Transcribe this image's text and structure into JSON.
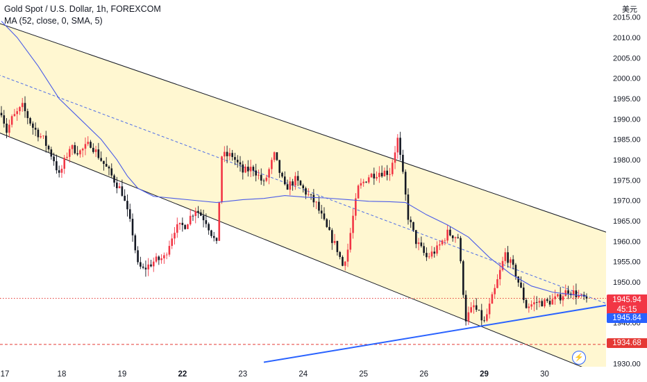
{
  "header": {
    "title": "Gold Spot / U.S. Dollar, 1h, FOREXCOM",
    "indicator": "MA (52, close, 0, SMA, 5)",
    "currency": "美元"
  },
  "price_tags": {
    "last_price": "1945.94",
    "countdown": "45:15",
    "trendline_price": "1945.84",
    "level_price": "1934.68"
  },
  "colors": {
    "up": "#f23645",
    "down": "#131722",
    "ma": "#4a5be8",
    "channel_fill": "#fff7d1",
    "trendline": "#2962ff",
    "level": "#e53935"
  },
  "flash_icon": "lightning-icon",
  "chart_data": {
    "type": "candlestick",
    "symbol": "Gold Spot / U.S. Dollar",
    "interval": "1h",
    "y_axis": {
      "ticks": [
        1930,
        1935,
        1940,
        1945,
        1950,
        1955,
        1960,
        1965,
        1970,
        1975,
        1980,
        1985,
        1990,
        1995,
        2000,
        2005,
        2010,
        2015
      ],
      "tick_labels": [
        "1930.00",
        "1935.00",
        "1940.00",
        "1945.00",
        "1950.00",
        "1955.00",
        "1960.00",
        "1965.00",
        "1970.00",
        "1975.00",
        "1980.00",
        "1985.00",
        "1990.00",
        "1995.00",
        "2000.00",
        "2005.00",
        "2010.00",
        "2015.00"
      ],
      "range": [
        1929.2,
        2019.2
      ],
      "side": "right"
    },
    "x_axis": {
      "labels": [
        "17",
        "18",
        "19",
        "22",
        "23",
        "24",
        "25",
        "26",
        "29",
        "30"
      ],
      "bold_labels": [
        "22",
        "29"
      ]
    },
    "anchors_close": [
      [
        0,
        1992
      ],
      [
        2,
        1987
      ],
      [
        4,
        1990
      ],
      [
        8,
        1993
      ],
      [
        12,
        1988
      ],
      [
        16,
        1985
      ],
      [
        20,
        1980
      ],
      [
        22,
        1976
      ],
      [
        26,
        1983
      ],
      [
        30,
        1982
      ],
      [
        34,
        1984
      ],
      [
        38,
        1980
      ],
      [
        42,
        1976
      ],
      [
        46,
        1972
      ],
      [
        50,
        1962
      ],
      [
        52,
        1954
      ],
      [
        54,
        1953
      ],
      [
        58,
        1955
      ],
      [
        62,
        1956
      ],
      [
        66,
        1963
      ],
      [
        70,
        1964
      ],
      [
        74,
        1968
      ],
      [
        78,
        1965
      ],
      [
        82,
        1959
      ],
      [
        84,
        1981
      ],
      [
        88,
        1981
      ],
      [
        92,
        1977
      ],
      [
        96,
        1978
      ],
      [
        100,
        1974
      ],
      [
        104,
        1981
      ],
      [
        108,
        1973
      ],
      [
        112,
        1975
      ],
      [
        116,
        1972
      ],
      [
        120,
        1969
      ],
      [
        124,
        1963
      ],
      [
        128,
        1958
      ],
      [
        130,
        1954
      ],
      [
        132,
        1958
      ],
      [
        134,
        1966
      ],
      [
        136,
        1973
      ],
      [
        140,
        1976
      ],
      [
        144,
        1977
      ],
      [
        148,
        1977
      ],
      [
        151,
        1985
      ],
      [
        153,
        1976
      ],
      [
        155,
        1966
      ],
      [
        158,
        1960
      ],
      [
        162,
        1956
      ],
      [
        166,
        1958
      ],
      [
        170,
        1962
      ],
      [
        174,
        1961
      ],
      [
        177,
        1941
      ],
      [
        180,
        1944
      ],
      [
        184,
        1940
      ],
      [
        188,
        1948
      ],
      [
        192,
        1957
      ],
      [
        196,
        1952
      ],
      [
        200,
        1944
      ],
      [
        204,
        1945
      ],
      [
        208,
        1945
      ],
      [
        212,
        1946
      ],
      [
        216,
        1948
      ],
      [
        219,
        1947
      ],
      [
        221,
        1946
      ],
      [
        223,
        1945.94
      ]
    ],
    "moving_average": {
      "name": "MA (52, close, 0, SMA, 5)",
      "points": [
        [
          0,
          2014
        ],
        [
          6,
          2010
        ],
        [
          14,
          2003
        ],
        [
          22,
          1995
        ],
        [
          30,
          1990
        ],
        [
          38,
          1985
        ],
        [
          44,
          1980
        ],
        [
          48,
          1976
        ],
        [
          52,
          1973
        ],
        [
          58,
          1971
        ],
        [
          66,
          1970.5
        ],
        [
          74,
          1970
        ],
        [
          82,
          1969.5
        ],
        [
          92,
          1970.2
        ],
        [
          100,
          1970.5
        ],
        [
          108,
          1971.2
        ],
        [
          116,
          1970.8
        ],
        [
          124,
          1970.6
        ],
        [
          132,
          1970.2
        ],
        [
          140,
          1969.8
        ],
        [
          148,
          1969.7
        ],
        [
          154,
          1969.5
        ],
        [
          162,
          1966.5
        ],
        [
          170,
          1964
        ],
        [
          178,
          1961
        ],
        [
          186,
          1956
        ],
        [
          194,
          1952
        ],
        [
          202,
          1949
        ],
        [
          210,
          1947.5
        ],
        [
          216,
          1947
        ],
        [
          223,
          1946.5
        ]
      ]
    },
    "parallel_channel": {
      "upper": [
        [
          -10,
          2015.5
        ],
        [
          245,
          1959
        ]
      ],
      "mid": [
        [
          -10,
          2003
        ],
        [
          245,
          1941.2
        ]
      ],
      "lower": [
        [
          -10,
          1989
        ],
        [
          245,
          1923
        ]
      ]
    },
    "trendline": [
      [
        100,
        1930.3
      ],
      [
        245,
        1945.84
      ]
    ],
    "horizontal_levels": [
      {
        "price": 1946.0,
        "style": "dotted"
      },
      {
        "price": 1934.68,
        "style": "dashed"
      }
    ],
    "bar_count": 224,
    "last_price": 1945.94
  }
}
